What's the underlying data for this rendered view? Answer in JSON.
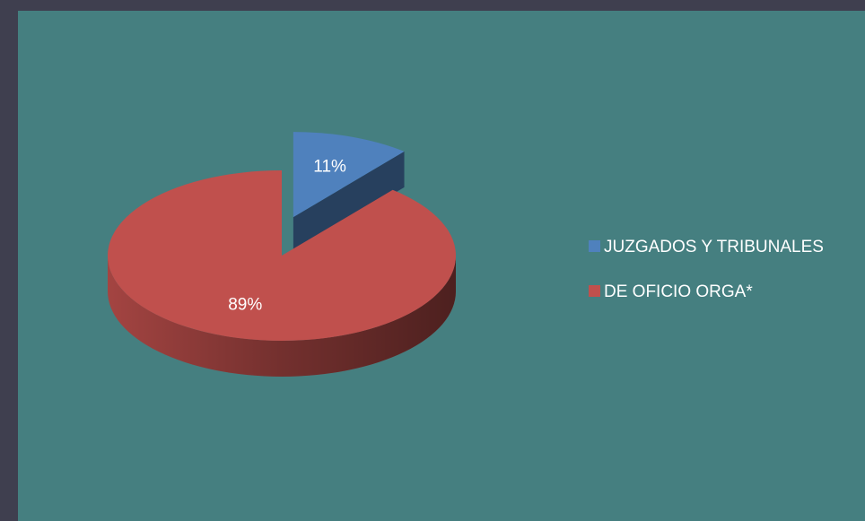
{
  "chart_data": {
    "type": "pie",
    "three_d": true,
    "categories": [
      "JUZGADOS Y TRIBUNALES",
      "DE OFICIO ORGA*"
    ],
    "values": [
      11,
      89
    ],
    "value_labels": [
      "11%",
      "89%"
    ],
    "colors": [
      "#4f81bd",
      "#c0504d"
    ],
    "exploded": [
      true,
      false
    ],
    "legend": "right"
  }
}
